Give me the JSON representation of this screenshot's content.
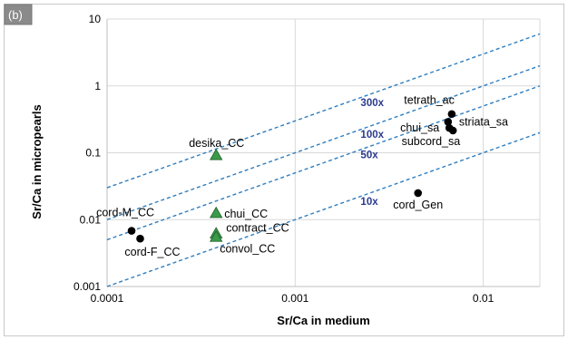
{
  "panel_label": "(b)",
  "chart_data": {
    "type": "scatter",
    "xlabel": "Sr/Ca in medium",
    "ylabel": "Sr/Ca in micropearls",
    "xscale": "log",
    "yscale": "log",
    "xlim": [
      0.0001,
      0.02
    ],
    "ylim": [
      0.001,
      10
    ],
    "x_ticks": [
      {
        "value": 0.0001,
        "label": "0.0001"
      },
      {
        "value": 0.001,
        "label": "0.001"
      },
      {
        "value": 0.01,
        "label": "0.01"
      }
    ],
    "y_ticks": [
      {
        "value": 0.001,
        "label": "0.001"
      },
      {
        "value": 0.01,
        "label": "0.01"
      },
      {
        "value": 0.1,
        "label": "0.1"
      },
      {
        "value": 1,
        "label": "1"
      },
      {
        "value": 10,
        "label": "10"
      }
    ],
    "grid": true,
    "reference_lines": [
      {
        "label": "300x",
        "factor": 300
      },
      {
        "label": "100x",
        "factor": 100
      },
      {
        "label": "50x",
        "factor": 50
      },
      {
        "label": "10x",
        "factor": 10
      }
    ],
    "points": [
      {
        "label": "desika_CC",
        "x": 0.00038,
        "y": 0.092,
        "marker": "triangle"
      },
      {
        "label": "chui_CC",
        "x": 0.00038,
        "y": 0.0125,
        "marker": "triangle"
      },
      {
        "label": "contract_CC",
        "x": 0.00038,
        "y": 0.0062,
        "marker": "triangle"
      },
      {
        "label": "convol_CC",
        "x": 0.00038,
        "y": 0.0055,
        "marker": "triangle"
      },
      {
        "label": "cord-M_CC",
        "x": 0.000135,
        "y": 0.0068,
        "marker": "circle"
      },
      {
        "label": "cord-F_CC",
        "x": 0.00015,
        "y": 0.0052,
        "marker": "circle"
      },
      {
        "label": "tetrath_ac",
        "x": 0.0068,
        "y": 0.38,
        "marker": "circle"
      },
      {
        "label": "striata_sa",
        "x": 0.0065,
        "y": 0.29,
        "marker": "circle"
      },
      {
        "label": "chui_sa",
        "x": 0.0066,
        "y": 0.235,
        "marker": "circle"
      },
      {
        "label": "subcord_sa",
        "x": 0.0069,
        "y": 0.215,
        "marker": "circle"
      },
      {
        "label": "cord_Gen",
        "x": 0.0045,
        "y": 0.025,
        "marker": "circle"
      }
    ],
    "colors": {
      "circle": "#000000",
      "triangle": "#3a9a4a",
      "reference_line": "#2f7ebf",
      "reference_label": "#2b3a8f",
      "grid": "#d9d9d9"
    }
  }
}
